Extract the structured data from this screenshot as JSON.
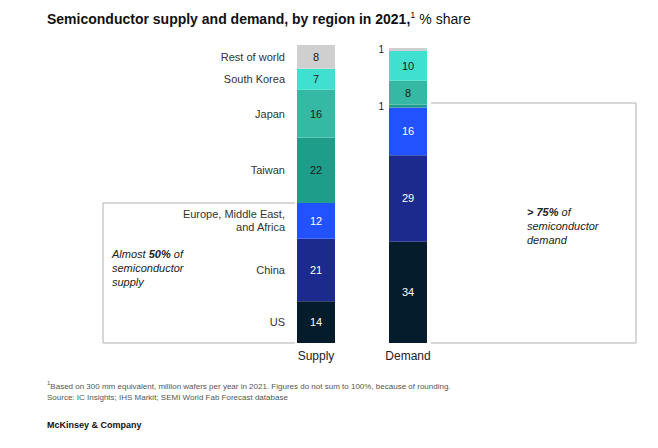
{
  "chart_data": {
    "type": "bar",
    "stacked": true,
    "data_labels": true,
    "tick_labels": "x",
    "grid": false,
    "title": "Semiconductor supply and demand, by region in 2021,",
    "title_footnote_marker": "1",
    "subtitle": "% share",
    "categories": [
      "Supply",
      "Demand"
    ],
    "series": [
      {
        "name": "US",
        "color": "#051c2c",
        "values": [
          14,
          34
        ]
      },
      {
        "name": "China",
        "color": "#1b2a8c",
        "values": [
          21,
          29
        ]
      },
      {
        "name": "Europe, Middle East, and Africa",
        "color": "#2251ff",
        "values": [
          12,
          16
        ]
      },
      {
        "name": "Taiwan",
        "color": "#1e9d8b",
        "values": [
          22,
          1
        ]
      },
      {
        "name": "Japan",
        "color": "#35b9a5",
        "values": [
          16,
          8
        ]
      },
      {
        "name": "South Korea",
        "color": "#3fe0d0",
        "values": [
          7,
          10
        ]
      },
      {
        "name": "Rest of world",
        "color": "#cfcfcf",
        "values": [
          8,
          1
        ]
      }
    ],
    "annotations": [
      {
        "text": "Almost 50% of semiconductor supply"
      },
      {
        "text": "> 75% of semiconductor demand"
      }
    ],
    "footnote": "Based on 300 mm equivalent, million wafers per year in 2021. Figures do not sum to 100%, because of rounding.",
    "source": "Source: IC Insights; IHS Markit; SEMI World Fab Forecast database",
    "credit": "McKinsey & Company"
  }
}
